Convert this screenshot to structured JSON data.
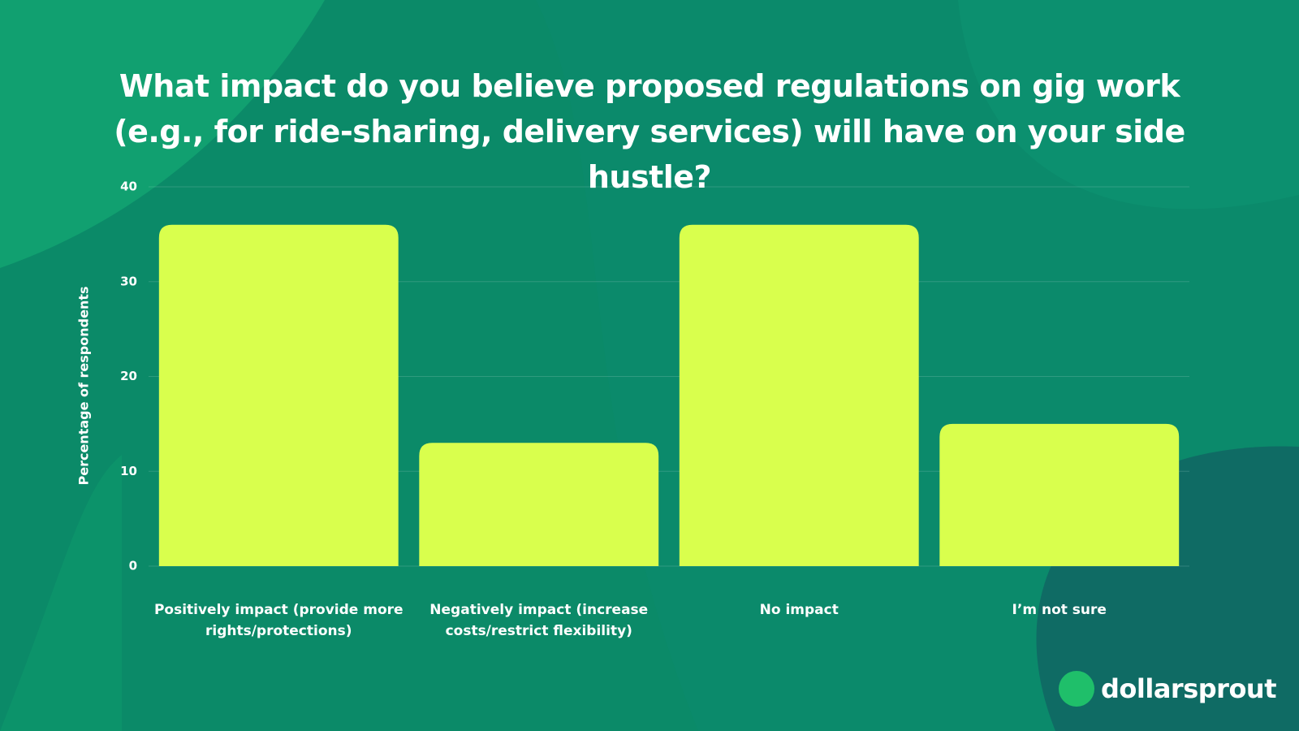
{
  "chart_data": {
    "type": "bar",
    "title": "What impact do you believe proposed regulations on gig work (e.g., for ride-sharing, delivery services) will have on your side hustle?",
    "y_label": "Percentage of respondents",
    "categories": [
      "Positively impact (provide more rights/protections)",
      "Negatively impact (increase costs/restrict flexibility)",
      "No impact",
      "I’m not sure"
    ],
    "values": [
      36,
      13,
      36,
      15
    ],
    "color": "#d9ff4d",
    "ylim": [
      0,
      40
    ],
    "yticks": [
      0,
      10,
      20,
      30,
      40
    ],
    "grid": true,
    "brand": "dollarsprout"
  }
}
